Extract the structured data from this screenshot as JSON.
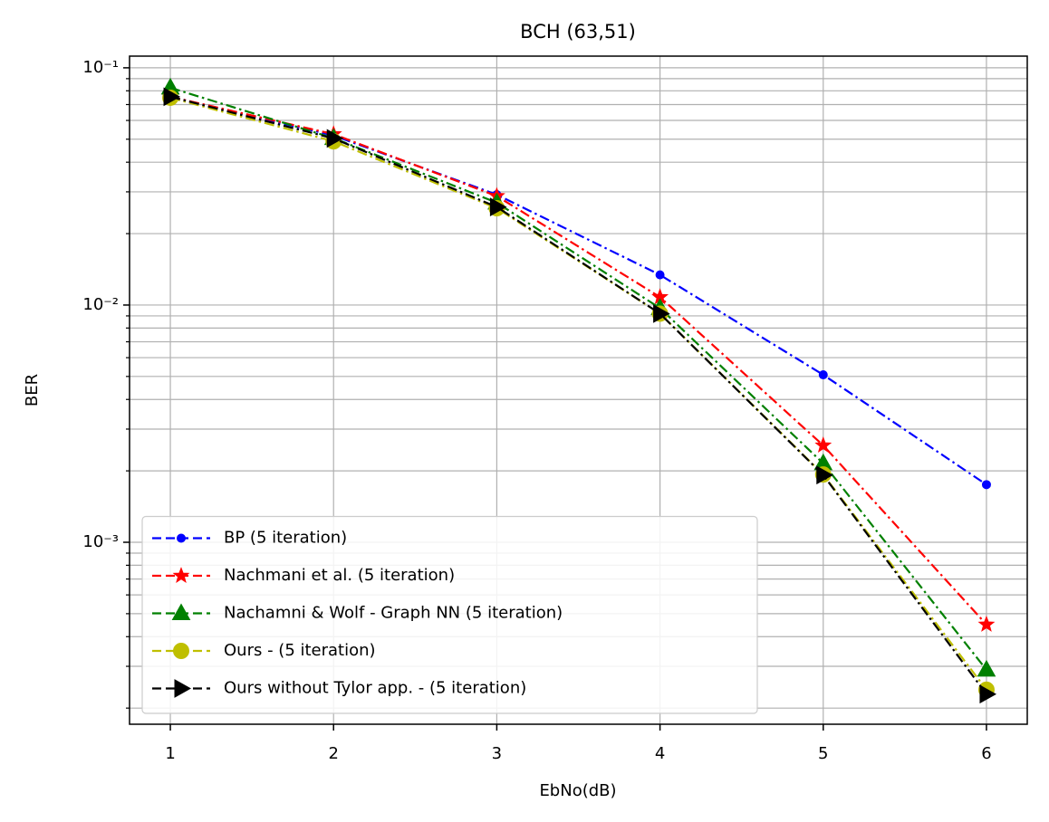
{
  "chart_data": {
    "type": "line",
    "title": "BCH (63,51)",
    "x_label": "EbNo(dB)",
    "y_label": "BER",
    "x": [
      1,
      2,
      3,
      4,
      5,
      6
    ],
    "xlim": [
      0.75,
      6.25
    ],
    "xticks": [
      1,
      2,
      3,
      4,
      5,
      6
    ],
    "ylim": [
      0.000171,
      0.112
    ],
    "yscale": "log",
    "yticks": [
      {
        "value": 0.1,
        "label": "10⁻¹"
      },
      {
        "value": 0.01,
        "label": "10⁻²"
      },
      {
        "value": 0.001,
        "label": "10⁻³"
      }
    ],
    "yminorticks": [
      0.0002,
      0.0003,
      0.0004,
      0.0005,
      0.0006,
      0.0007,
      0.0008,
      0.0009,
      0.002,
      0.003,
      0.004,
      0.005,
      0.006,
      0.007,
      0.008,
      0.009,
      0.02,
      0.03,
      0.04,
      0.05,
      0.06,
      0.07,
      0.08,
      0.09
    ],
    "grid": true,
    "legend_loc": "lower left",
    "series": [
      {
        "name": "BP (5 iteration)",
        "color": "#0000ff",
        "marker": "point",
        "values": [
          0.0755,
          0.0518,
          0.0292,
          0.0134,
          0.00508,
          0.00175
        ]
      },
      {
        "name": "Nachmani et al. (5 iteration)",
        "color": "#ff0000",
        "marker": "star",
        "values": [
          0.0755,
          0.0525,
          0.0288,
          0.0108,
          0.00256,
          0.00045
        ]
      },
      {
        "name": "Nachamni & Wolf - Graph NN (5 iteration)",
        "color": "#008000",
        "marker": "triangle-up",
        "values": [
          0.0824,
          0.0505,
          0.027,
          0.0097,
          0.00215,
          0.00029
        ]
      },
      {
        "name": "Ours - (5 iteration)",
        "color": "#bfbf00",
        "marker": "circle",
        "values": [
          0.0748,
          0.049,
          0.0256,
          0.0092,
          0.00193,
          0.000239
        ]
      },
      {
        "name": "Ours without Tylor app. - (5 iteration)",
        "color": "#000000",
        "marker": "triangle-right",
        "values": [
          0.0755,
          0.0504,
          0.0259,
          0.0092,
          0.00192,
          0.000229
        ]
      }
    ]
  }
}
